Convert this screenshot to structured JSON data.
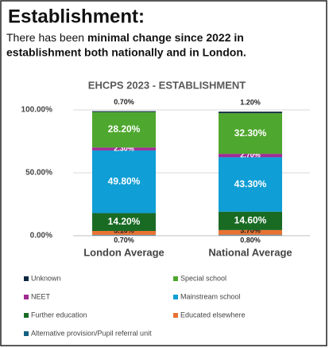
{
  "heading": "Establishment:",
  "intro": [
    "There has been ",
    "minimal change since 2022 in",
    "establishment both nationally and in London."
  ],
  "chart_data": {
    "type": "stacked_bar",
    "title": "EHCPS 2023 - ESTABLISHMENT",
    "categories": [
      "London Average",
      "National Average"
    ],
    "ylim": [
      0,
      100
    ],
    "yticks": [
      {
        "value": 0,
        "label": "0.00%"
      },
      {
        "value": 50,
        "label": "50.00%"
      },
      {
        "value": 100,
        "label": "100.00%"
      }
    ],
    "grid": true,
    "series": [
      {
        "name": "Alternative provision/Pupil referral unit",
        "color": "#156082",
        "values": [
          0.7,
          0.8
        ],
        "value_labels": [
          "0.70%",
          "0.80%"
        ]
      },
      {
        "name": "Educated elsewhere",
        "color": "#e97132",
        "values": [
          3.1,
          3.7
        ],
        "value_labels": [
          "3.10%",
          "3.70%"
        ]
      },
      {
        "name": "Further education",
        "color": "#196b24",
        "values": [
          14.2,
          14.6
        ],
        "value_labels": [
          "14.20%",
          "14.60%"
        ]
      },
      {
        "name": "Mainstream school",
        "color": "#0f9ed5",
        "values": [
          49.8,
          43.3
        ],
        "value_labels": [
          "49.80%",
          "43.30%"
        ]
      },
      {
        "name": "NEET",
        "color": "#a02b93",
        "values": [
          2.3,
          2.7
        ],
        "value_labels": [
          "2.30%",
          "2.70%"
        ]
      },
      {
        "name": "Special school",
        "color": "#4ea72e",
        "values": [
          28.2,
          32.3
        ],
        "value_labels": [
          "28.20%",
          "32.30%"
        ]
      },
      {
        "name": "Unknown",
        "color": "#0e2841",
        "values": [
          0.7,
          1.2
        ],
        "value_labels": [
          "0.70%",
          "1.20%"
        ]
      }
    ]
  }
}
